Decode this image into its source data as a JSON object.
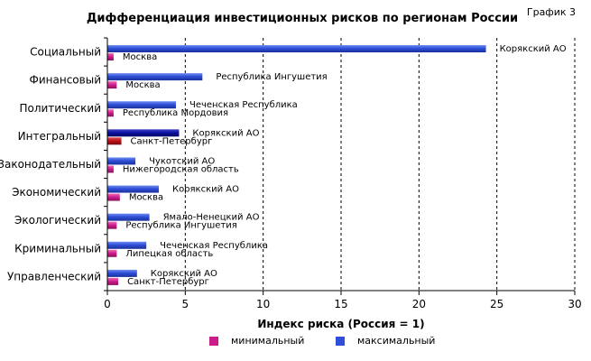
{
  "chart_number": "График 3",
  "chart_data": {
    "type": "bar",
    "orientation": "horizontal",
    "title": "Дифференциация инвестиционных рисков по регионам России",
    "xlabel": "Индекс риска (Россия = 1)",
    "ylabel": "",
    "xlim": [
      0,
      30
    ],
    "xticks": [
      0,
      5,
      10,
      15,
      20,
      25,
      30
    ],
    "grid": "vertical dashed",
    "legend_position": "bottom",
    "categories": [
      "Социальный",
      "Финансовый",
      "Политический",
      "Интегральный",
      "Законодательный",
      "Экономический",
      "Экологический",
      "Криминальный",
      "Управленческий"
    ],
    "series": [
      {
        "name": "минимальный",
        "color": "#cc1b8c",
        "values": [
          0.4,
          0.6,
          0.4,
          0.9,
          0.4,
          0.8,
          0.6,
          0.6,
          0.7
        ],
        "labels": [
          "Москва",
          "Москва",
          "Республика Мордовия",
          "Санкт-Петербург",
          "Нижегородская область",
          "Москва",
          "Республика Ингушетия",
          "Липецкая область",
          "Санкт-Петербург"
        ]
      },
      {
        "name": "максимальный",
        "color": "#2f4fd8",
        "values": [
          24.3,
          6.1,
          4.4,
          4.6,
          1.8,
          3.3,
          2.7,
          2.5,
          1.9
        ],
        "labels": [
          "Корякский АО",
          "Республика Ингушетия",
          "Чеченская Республика",
          "Корякский АО",
          "Чукотский АО",
          "Корякский АО",
          "Ямало-Ненецкий АО",
          "Чеченская Республика",
          "Корякский АО"
        ]
      }
    ],
    "highlight_category": "Интегральный",
    "highlight_colors": {
      "минимальный": "#b80f16",
      "максимальный": "#0a0f9c"
    }
  }
}
